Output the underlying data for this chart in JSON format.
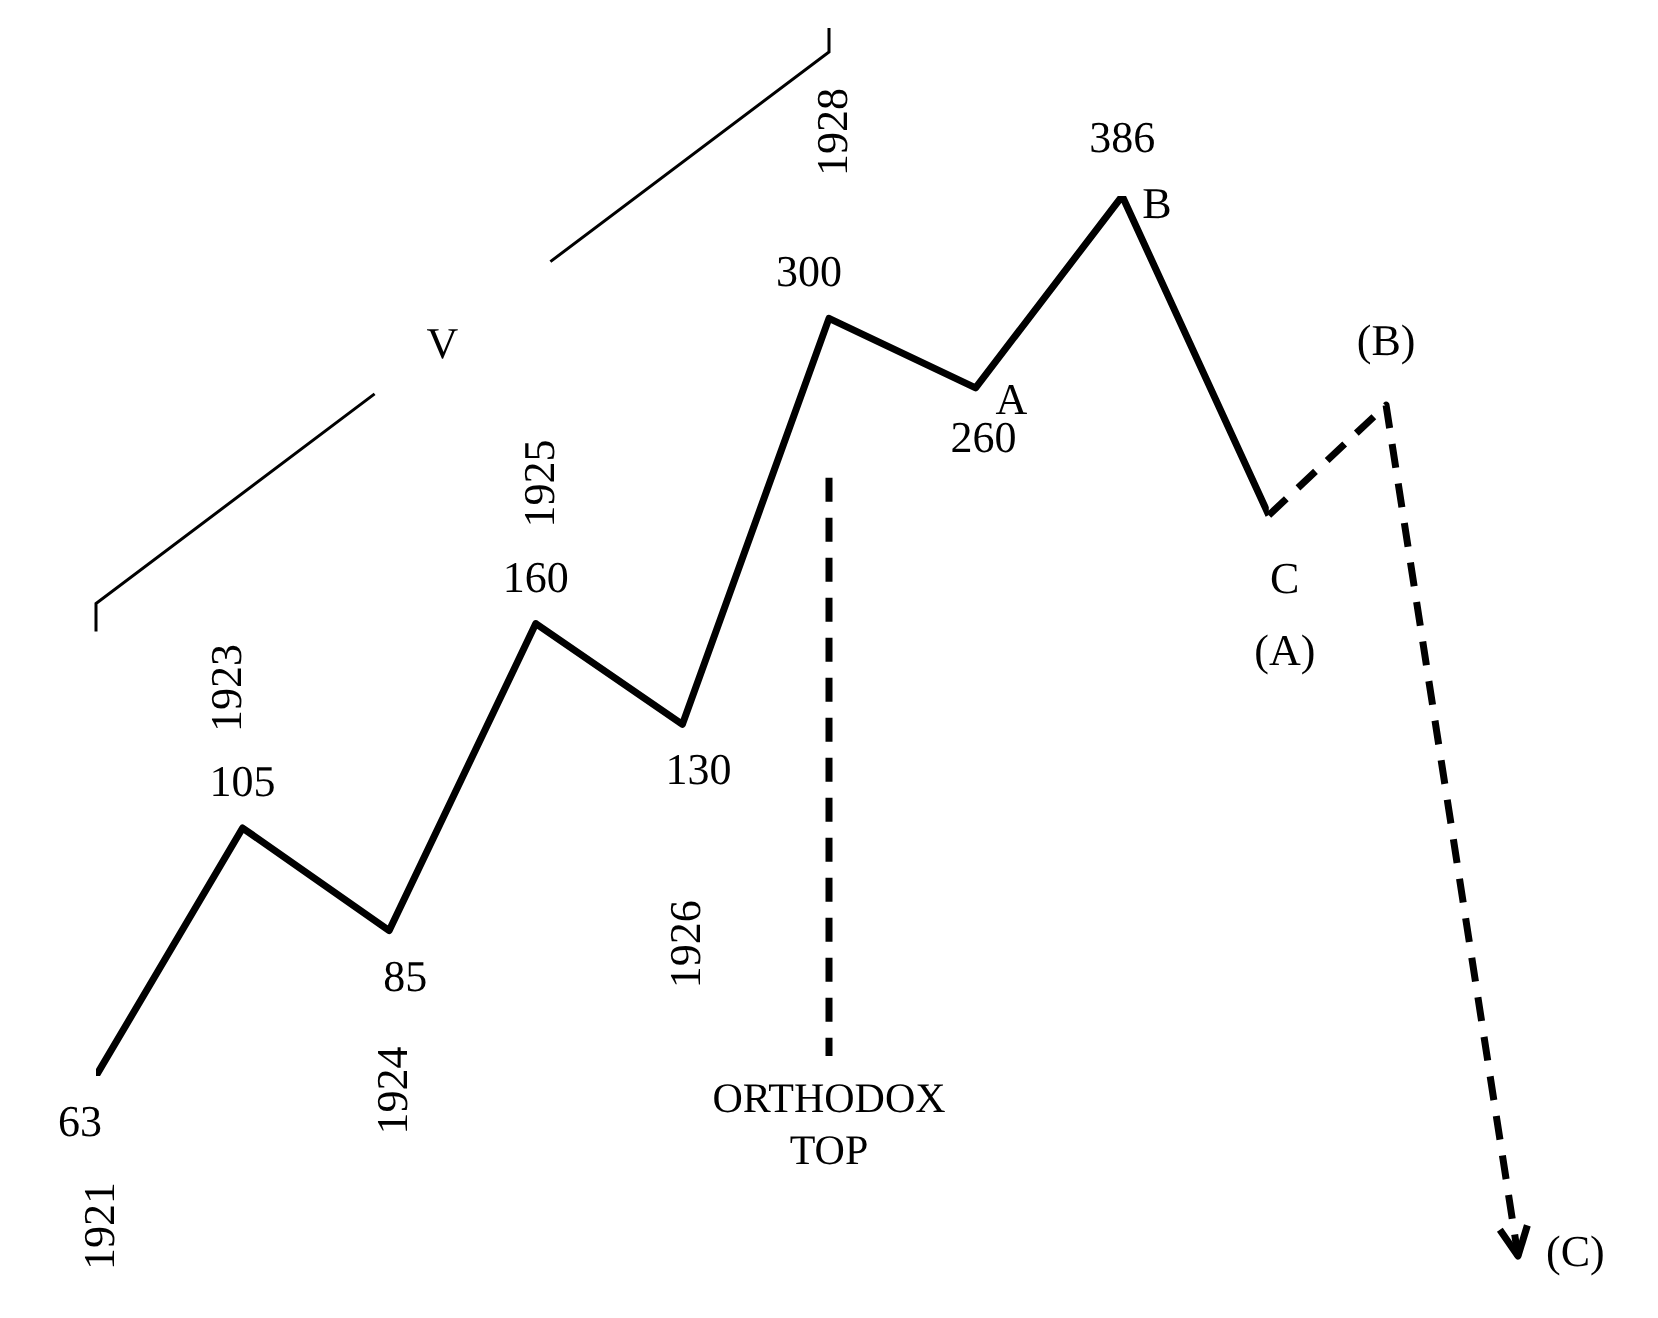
{
  "chart_data": {
    "type": "line",
    "log": true,
    "tick_labels": false,
    "marker": "none",
    "categories": [
      null,
      null,
      null,
      null,
      null,
      null,
      null,
      null,
      null
    ],
    "series": [
      {
        "color": "#000000",
        "line_style": "solid",
        "values": [
          63,
          105,
          85,
          160,
          130,
          300,
          260,
          386,
          200
        ],
        "value_labels": [
          "63",
          "105",
          "85",
          "160",
          "130",
          "300",
          "260",
          "386",
          null
        ]
      }
    ],
    "annotations": [
      "V",
      "1921",
      "1923",
      "1924",
      "1925",
      "1926",
      "1928",
      "A",
      "B",
      "C",
      "(A)",
      "(B)",
      "(C)",
      "ORTHODOX TOP"
    ]
  }
}
